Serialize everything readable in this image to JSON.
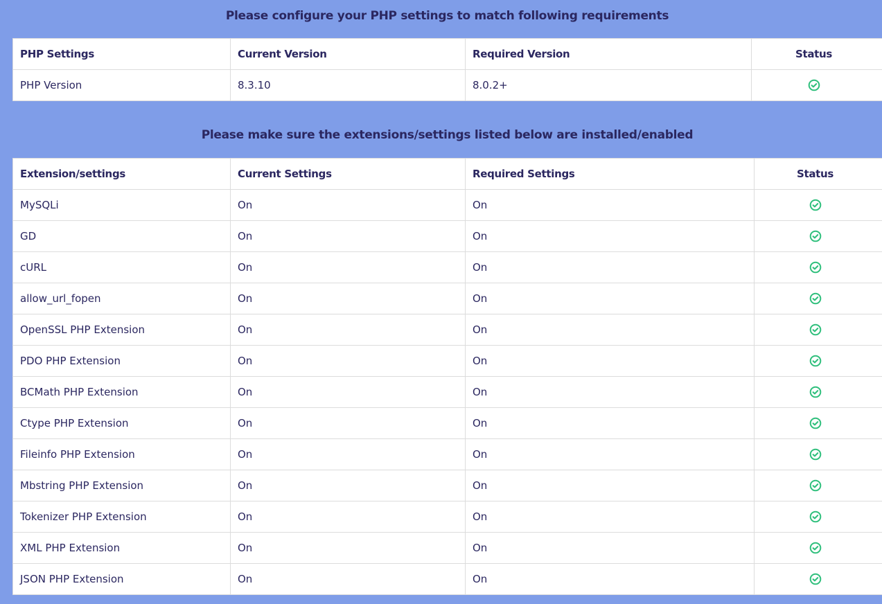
{
  "colors": {
    "background": "#7f9de8",
    "text": "#2b2760",
    "success": "#2fbf7c"
  },
  "php": {
    "title": "Please configure your PHP settings to match following requirements",
    "headers": [
      "PHP Settings",
      "Current Version",
      "Required Version",
      "Status"
    ],
    "rows": [
      {
        "name": "PHP Version",
        "current": "8.3.10",
        "required": "8.0.2+",
        "status": "check-circle-icon"
      }
    ]
  },
  "ext": {
    "title": "Please make sure the extensions/settings listed below are installed/enabled",
    "headers": [
      "Extension/settings",
      "Current Settings",
      "Required Settings",
      "Status"
    ],
    "rows": [
      {
        "name": "MySQLi",
        "current": "On",
        "required": "On",
        "status": "check-circle-icon"
      },
      {
        "name": "GD",
        "current": "On",
        "required": "On",
        "status": "check-circle-icon"
      },
      {
        "name": "cURL",
        "current": "On",
        "required": "On",
        "status": "check-circle-icon"
      },
      {
        "name": "allow_url_fopen",
        "current": "On",
        "required": "On",
        "status": "check-circle-icon"
      },
      {
        "name": "OpenSSL PHP Extension",
        "current": "On",
        "required": "On",
        "status": "check-circle-icon"
      },
      {
        "name": "PDO PHP Extension",
        "current": "On",
        "required": "On",
        "status": "check-circle-icon"
      },
      {
        "name": "BCMath PHP Extension",
        "current": "On",
        "required": "On",
        "status": "check-circle-icon"
      },
      {
        "name": "Ctype PHP Extension",
        "current": "On",
        "required": "On",
        "status": "check-circle-icon"
      },
      {
        "name": "Fileinfo PHP Extension",
        "current": "On",
        "required": "On",
        "status": "check-circle-icon"
      },
      {
        "name": "Mbstring PHP Extension",
        "current": "On",
        "required": "On",
        "status": "check-circle-icon"
      },
      {
        "name": "Tokenizer PHP Extension",
        "current": "On",
        "required": "On",
        "status": "check-circle-icon"
      },
      {
        "name": "XML PHP Extension",
        "current": "On",
        "required": "On",
        "status": "check-circle-icon"
      },
      {
        "name": "JSON PHP Extension",
        "current": "On",
        "required": "On",
        "status": "check-circle-icon"
      }
    ]
  }
}
